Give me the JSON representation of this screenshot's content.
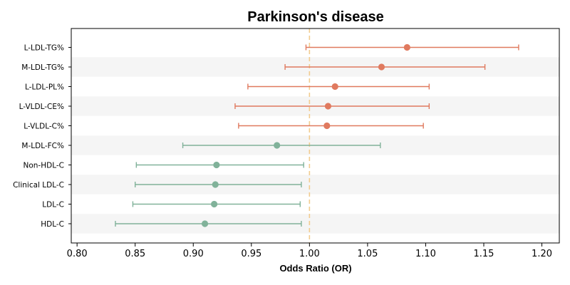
{
  "chart_data": {
    "type": "forest",
    "title": "Parkinson's disease",
    "xlabel": "Odds Ratio (OR)",
    "ylabel": "",
    "xlim": [
      0.795,
      1.215
    ],
    "x_ticks": [
      "0.80",
      "0.85",
      "0.90",
      "0.95",
      "1.00",
      "1.05",
      "1.10",
      "1.15",
      "1.20"
    ],
    "reference_line": 1.0,
    "colors": {
      "positive": "#E07A5F",
      "negative": "#81B29A",
      "reference": "#F2CC8F",
      "band": "#F5F5F5"
    },
    "rows": [
      {
        "label": "L-LDL-TG%",
        "or": 1.084,
        "lower": 0.997,
        "upper": 1.18,
        "group": "positive"
      },
      {
        "label": "M-LDL-TG%",
        "or": 1.062,
        "lower": 0.979,
        "upper": 1.151,
        "group": "positive"
      },
      {
        "label": "L-LDL-PL%",
        "or": 1.022,
        "lower": 0.947,
        "upper": 1.103,
        "group": "positive"
      },
      {
        "label": "L-VLDL-CE%",
        "or": 1.016,
        "lower": 0.936,
        "upper": 1.103,
        "group": "positive"
      },
      {
        "label": "L-VLDL-C%",
        "or": 1.015,
        "lower": 0.939,
        "upper": 1.098,
        "group": "positive"
      },
      {
        "label": "M-LDL-FC%",
        "or": 0.972,
        "lower": 0.891,
        "upper": 1.061,
        "group": "negative"
      },
      {
        "label": "Non-HDL-C",
        "or": 0.92,
        "lower": 0.851,
        "upper": 0.995,
        "group": "negative"
      },
      {
        "label": "Clinical LDL-C",
        "or": 0.919,
        "lower": 0.85,
        "upper": 0.993,
        "group": "negative"
      },
      {
        "label": "LDL-C",
        "or": 0.918,
        "lower": 0.848,
        "upper": 0.992,
        "group": "negative"
      },
      {
        "label": "HDL-C",
        "or": 0.91,
        "lower": 0.833,
        "upper": 0.993,
        "group": "negative"
      }
    ]
  }
}
